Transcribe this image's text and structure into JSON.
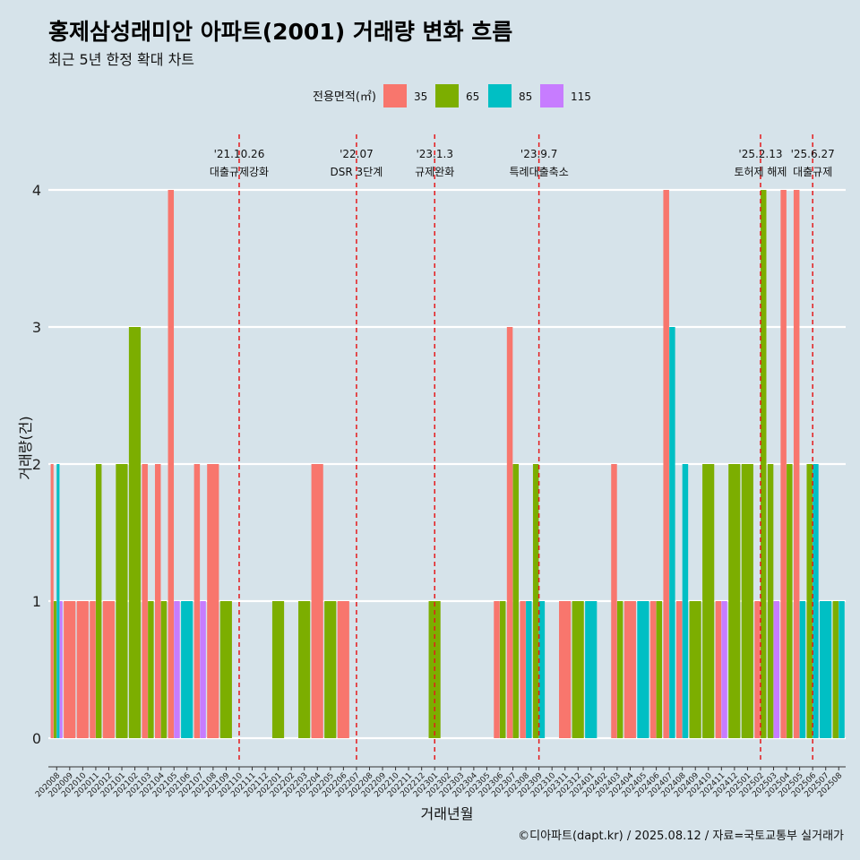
{
  "title": "홍제삼성래미안 아파트(2001) 거래량 변화 흐름",
  "subtitle": "최근 5년 한정 확대 차트",
  "caption": "©디아파트(dapt.kr) / 2025.08.12 / 자료=국토교통부 실거래가",
  "chart_data": {
    "type": "bar",
    "xlabel": "거래년월",
    "ylabel": "거래량(건)",
    "ylim": [
      0,
      4
    ],
    "y_ticks": [
      0,
      1,
      2,
      3,
      4
    ],
    "grid": true,
    "legend_position": "top",
    "legend_title": "전용면적(㎡)",
    "categories": [
      "202008",
      "202009",
      "202010",
      "202011",
      "202012",
      "202101",
      "202102",
      "202103",
      "202104",
      "202105",
      "202106",
      "202107",
      "202108",
      "202109",
      "202110",
      "202111",
      "202112",
      "202201",
      "202202",
      "202203",
      "202204",
      "202205",
      "202206",
      "202207",
      "202208",
      "202209",
      "202210",
      "202211",
      "202212",
      "202301",
      "202302",
      "202303",
      "202304",
      "202305",
      "202306",
      "202307",
      "202308",
      "202309",
      "202310",
      "202311",
      "202312",
      "202401",
      "202402",
      "202403",
      "202404",
      "202405",
      "202406",
      "202407",
      "202408",
      "202409",
      "202410",
      "202411",
      "202412",
      "202501",
      "202502",
      "202503",
      "202504",
      "202505",
      "202506",
      "202507",
      "202508"
    ],
    "series": [
      {
        "name": "35",
        "color": "#F8766D",
        "values": [
          2,
          1,
          1,
          1,
          1,
          0,
          0,
          2,
          2,
          4,
          0,
          2,
          2,
          0,
          0,
          0,
          0,
          0,
          0,
          0,
          2,
          0,
          1,
          0,
          0,
          0,
          0,
          0,
          0,
          0,
          0,
          0,
          0,
          0,
          1,
          3,
          1,
          0,
          0,
          1,
          0,
          0,
          0,
          2,
          1,
          0,
          1,
          4,
          1,
          0,
          0,
          1,
          0,
          0,
          1,
          0,
          4,
          4,
          0,
          0,
          0
        ]
      },
      {
        "name": "65",
        "color": "#7CAE00",
        "values": [
          1,
          0,
          0,
          2,
          0,
          2,
          3,
          1,
          1,
          0,
          0,
          0,
          0,
          1,
          0,
          0,
          0,
          1,
          0,
          1,
          0,
          1,
          0,
          0,
          0,
          0,
          0,
          0,
          0,
          1,
          0,
          0,
          0,
          0,
          1,
          2,
          0,
          2,
          0,
          0,
          1,
          0,
          0,
          1,
          0,
          0,
          1,
          0,
          0,
          1,
          2,
          0,
          2,
          2,
          4,
          2,
          2,
          0,
          2,
          0,
          1
        ]
      },
      {
        "name": "85",
        "color": "#00BFC4",
        "values": [
          2,
          0,
          0,
          0,
          0,
          0,
          0,
          0,
          0,
          0,
          1,
          0,
          0,
          0,
          0,
          0,
          0,
          0,
          0,
          0,
          0,
          0,
          0,
          0,
          0,
          0,
          0,
          0,
          0,
          0,
          0,
          0,
          0,
          0,
          0,
          0,
          1,
          1,
          0,
          0,
          0,
          1,
          0,
          0,
          0,
          1,
          0,
          3,
          2,
          0,
          0,
          0,
          0,
          0,
          0,
          0,
          0,
          1,
          2,
          1,
          1
        ]
      },
      {
        "name": "115",
        "color": "#C77CFF",
        "values": [
          1,
          0,
          0,
          0,
          0,
          0,
          0,
          0,
          0,
          1,
          0,
          1,
          0,
          0,
          0,
          0,
          0,
          0,
          0,
          0,
          0,
          0,
          0,
          0,
          0,
          0,
          0,
          0,
          0,
          0,
          0,
          0,
          0,
          0,
          0,
          0,
          0,
          0,
          0,
          0,
          0,
          0,
          0,
          0,
          0,
          0,
          0,
          0,
          0,
          0,
          0,
          1,
          0,
          0,
          0,
          1,
          0,
          0,
          0,
          0,
          0
        ]
      }
    ],
    "events": [
      {
        "x": "202110",
        "date": "'21.10.26",
        "label": "대출규제강화"
      },
      {
        "x": "202207",
        "date": "'22.07",
        "label": "DSR 3단계"
      },
      {
        "x": "202301",
        "date": "'23.1.3",
        "label": "규제완화"
      },
      {
        "x": "202309",
        "date": "'23.9.7",
        "label": "특례대출축소"
      },
      {
        "x": "202502",
        "date": "'25.2.13",
        "label": "토허제 해제"
      },
      {
        "x": "202506",
        "date": "'25.6.27",
        "label": "대출규제"
      }
    ]
  }
}
